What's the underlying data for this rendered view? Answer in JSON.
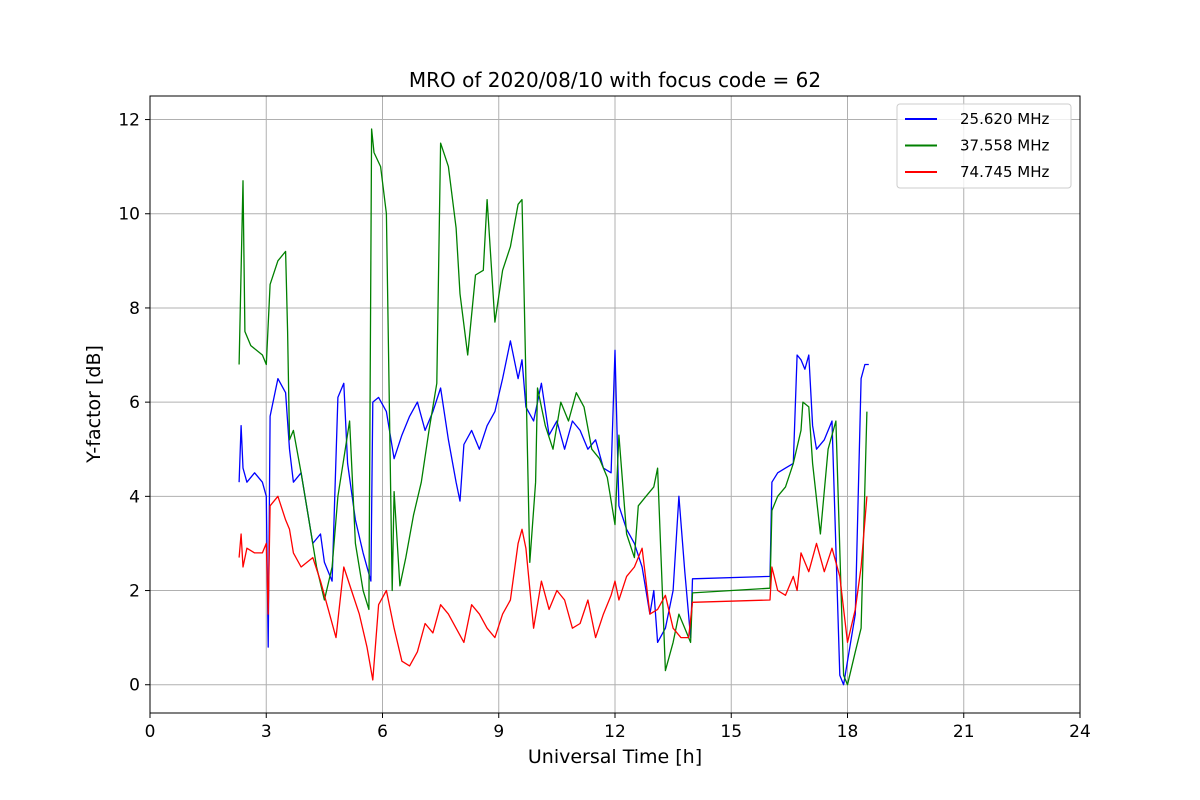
{
  "chart_data": {
    "type": "line",
    "title": "MRO of 2020/08/10 with focus code = 62",
    "xlabel": "Universal Time [h]",
    "ylabel": "Y-factor [dB]",
    "xlim": [
      0,
      24
    ],
    "ylim": [
      -0.6,
      12.5
    ],
    "xticks": [
      0,
      3,
      6,
      9,
      12,
      15,
      18,
      21,
      24
    ],
    "yticks": [
      0,
      2,
      4,
      6,
      8,
      10,
      12
    ],
    "grid": true,
    "legend_position": "top-right",
    "series": [
      {
        "name": "25.620 MHz",
        "color": "#0000ff",
        "x": [
          2.3,
          2.35,
          2.4,
          2.5,
          2.7,
          2.9,
          3.0,
          3.05,
          3.1,
          3.3,
          3.5,
          3.6,
          3.7,
          3.9,
          4.2,
          4.4,
          4.5,
          4.7,
          4.85,
          5.0,
          5.1,
          5.3,
          5.5,
          5.7,
          5.75,
          5.9,
          6.1,
          6.3,
          6.5,
          6.7,
          6.9,
          7.1,
          7.3,
          7.5,
          7.7,
          7.9,
          8.0,
          8.1,
          8.3,
          8.5,
          8.7,
          8.9,
          9.1,
          9.3,
          9.5,
          9.6,
          9.7,
          9.9,
          10.1,
          10.3,
          10.5,
          10.7,
          10.9,
          11.1,
          11.3,
          11.5,
          11.7,
          11.9,
          12.0,
          12.1,
          12.3,
          12.5,
          12.7,
          12.9,
          13.0,
          13.1,
          13.3,
          13.5,
          13.65,
          13.8,
          13.95,
          14.0,
          16.0,
          16.05,
          16.2,
          16.4,
          16.6,
          16.7,
          16.8,
          16.9,
          17.0,
          17.1,
          17.2,
          17.4,
          17.6,
          17.8,
          17.9,
          18.0,
          18.2,
          18.35,
          18.45,
          18.55
        ],
        "y": [
          4.3,
          5.5,
          4.6,
          4.3,
          4.5,
          4.3,
          4.0,
          0.8,
          5.7,
          6.5,
          6.2,
          5.0,
          4.3,
          4.5,
          3.0,
          3.2,
          2.6,
          2.2,
          6.1,
          6.4,
          4.7,
          3.5,
          2.8,
          2.2,
          6.0,
          6.1,
          5.8,
          4.8,
          5.3,
          5.7,
          6.0,
          5.4,
          5.8,
          6.3,
          5.2,
          4.3,
          3.9,
          5.1,
          5.4,
          5.0,
          5.5,
          5.8,
          6.5,
          7.3,
          6.5,
          6.9,
          5.9,
          5.6,
          6.4,
          5.3,
          5.6,
          5.0,
          5.6,
          5.4,
          5.0,
          5.2,
          4.6,
          4.5,
          7.1,
          3.8,
          3.3,
          3.0,
          2.5,
          1.5,
          2.0,
          0.9,
          1.2,
          2.0,
          4.0,
          2.4,
          1.0,
          2.25,
          2.3,
          4.3,
          4.5,
          4.6,
          4.7,
          7.0,
          6.9,
          6.7,
          7.0,
          5.5,
          5.0,
          5.2,
          5.6,
          0.2,
          0.0,
          0.5,
          1.5,
          6.5,
          6.8,
          6.8
        ]
      },
      {
        "name": "37.558 MHz",
        "color": "#008000",
        "x": [
          2.3,
          2.4,
          2.45,
          2.6,
          2.9,
          3.0,
          3.1,
          3.3,
          3.5,
          3.55,
          3.6,
          3.7,
          3.9,
          4.1,
          4.3,
          4.5,
          4.7,
          4.85,
          5.0,
          5.15,
          5.3,
          5.5,
          5.65,
          5.72,
          5.78,
          5.95,
          6.1,
          6.25,
          6.3,
          6.45,
          6.6,
          6.8,
          7.0,
          7.2,
          7.4,
          7.5,
          7.7,
          7.9,
          8.0,
          8.2,
          8.4,
          8.6,
          8.7,
          8.9,
          9.1,
          9.3,
          9.5,
          9.6,
          9.65,
          9.8,
          9.95,
          10.0,
          10.2,
          10.4,
          10.6,
          10.8,
          11.0,
          11.2,
          11.4,
          11.6,
          11.8,
          12.0,
          12.1,
          12.3,
          12.5,
          12.6,
          12.8,
          13.0,
          13.1,
          13.3,
          13.5,
          13.65,
          13.8,
          13.95,
          14.0,
          16.0,
          16.05,
          16.2,
          16.4,
          16.6,
          16.8,
          16.85,
          17.0,
          17.1,
          17.3,
          17.5,
          17.7,
          17.9,
          18.0,
          18.2,
          18.35,
          18.5
        ],
        "y": [
          6.8,
          10.7,
          7.5,
          7.2,
          7.0,
          6.8,
          8.5,
          9.0,
          9.2,
          7.5,
          5.2,
          5.4,
          4.5,
          3.5,
          2.5,
          1.8,
          2.5,
          4.0,
          4.8,
          5.6,
          3.0,
          2.0,
          1.6,
          11.8,
          11.3,
          11.0,
          10.0,
          2.0,
          4.1,
          2.1,
          2.7,
          3.6,
          4.3,
          5.4,
          6.4,
          11.5,
          11.0,
          9.7,
          8.3,
          7.0,
          8.7,
          8.8,
          10.3,
          7.7,
          8.8,
          9.3,
          10.2,
          10.3,
          8.5,
          2.6,
          4.3,
          6.3,
          5.5,
          5.0,
          6.0,
          5.6,
          6.2,
          5.9,
          5.0,
          4.8,
          4.4,
          3.4,
          5.3,
          3.2,
          2.7,
          3.8,
          4.0,
          4.2,
          4.6,
          0.3,
          0.9,
          1.5,
          1.2,
          0.9,
          1.95,
          2.05,
          3.7,
          4.0,
          4.2,
          4.7,
          5.4,
          6.0,
          5.9,
          4.7,
          3.2,
          5.0,
          5.6,
          0.2,
          0.0,
          0.7,
          1.2,
          5.8
        ],
        "note": ""
      },
      {
        "name": "74.745 MHz",
        "color": "#ff0000",
        "x": [
          2.3,
          2.35,
          2.4,
          2.5,
          2.7,
          2.9,
          3.0,
          3.05,
          3.1,
          3.3,
          3.5,
          3.6,
          3.7,
          3.9,
          4.2,
          4.4,
          4.6,
          4.8,
          5.0,
          5.2,
          5.4,
          5.6,
          5.75,
          5.9,
          6.1,
          6.3,
          6.5,
          6.7,
          6.9,
          7.1,
          7.3,
          7.5,
          7.7,
          7.9,
          8.1,
          8.3,
          8.5,
          8.7,
          8.9,
          9.1,
          9.3,
          9.5,
          9.6,
          9.7,
          9.9,
          10.1,
          10.3,
          10.5,
          10.7,
          10.9,
          11.1,
          11.3,
          11.5,
          11.7,
          11.9,
          12.0,
          12.1,
          12.3,
          12.5,
          12.7,
          12.9,
          13.1,
          13.3,
          13.5,
          13.7,
          13.9,
          14.0,
          16.0,
          16.05,
          16.2,
          16.4,
          16.6,
          16.7,
          16.8,
          17.0,
          17.2,
          17.4,
          17.6,
          17.8,
          18.0,
          18.2,
          18.35,
          18.5
        ],
        "y": [
          2.7,
          3.2,
          2.5,
          2.9,
          2.8,
          2.8,
          3.0,
          1.5,
          3.8,
          4.0,
          3.5,
          3.3,
          2.8,
          2.5,
          2.7,
          2.2,
          1.6,
          1.0,
          2.5,
          2.0,
          1.5,
          0.8,
          0.1,
          1.7,
          2.0,
          1.2,
          0.5,
          0.4,
          0.7,
          1.3,
          1.1,
          1.7,
          1.5,
          1.2,
          0.9,
          1.7,
          1.5,
          1.2,
          1.0,
          1.5,
          1.8,
          3.0,
          3.3,
          2.9,
          1.2,
          2.2,
          1.6,
          2.0,
          1.8,
          1.2,
          1.3,
          1.8,
          1.0,
          1.5,
          1.9,
          2.2,
          1.8,
          2.3,
          2.5,
          2.9,
          1.5,
          1.6,
          1.9,
          1.2,
          1.0,
          1.0,
          1.75,
          1.8,
          2.5,
          2.0,
          1.9,
          2.3,
          2.0,
          2.8,
          2.4,
          3.0,
          2.4,
          2.9,
          2.3,
          0.9,
          1.6,
          2.5,
          4.0
        ]
      }
    ]
  }
}
